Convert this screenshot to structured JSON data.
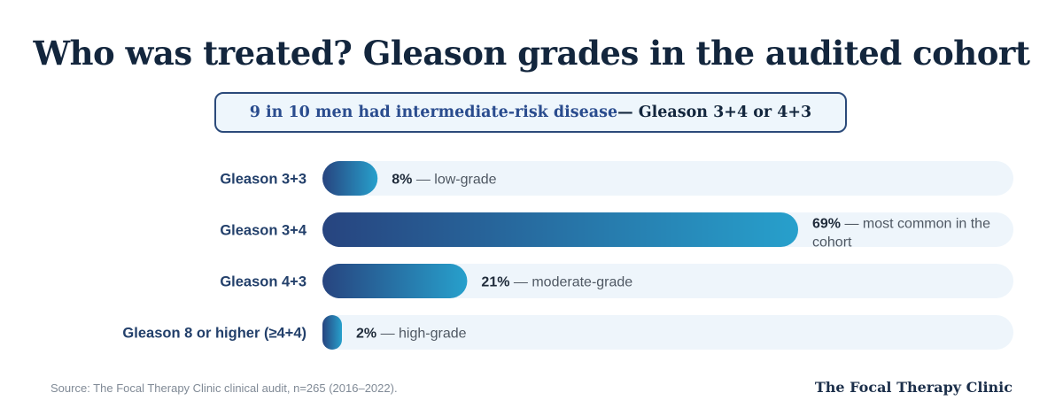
{
  "header": {
    "title": "Who was treated? Gleason grades in the audited cohort",
    "callout_emphasis": "9 in 10 men had intermediate-risk disease",
    "callout_rest": " — Gleason 3+4 or 4+3"
  },
  "chart_data": {
    "type": "bar",
    "orientation": "horizontal",
    "categories": [
      "Gleason 3+3",
      "Gleason 3+4",
      "Gleason 4+3",
      "Gleason 8 or higher (≥4+4)"
    ],
    "values": [
      8,
      69,
      21,
      2
    ],
    "value_labels": [
      "8%",
      "69%",
      "21%",
      "2%"
    ],
    "annotations": [
      " — low-grade",
      " — most common in the cohort",
      " — moderate-grade",
      " — high-grade"
    ],
    "xlim": [
      0,
      100
    ],
    "unit": "%",
    "grid": false,
    "legend": "none",
    "colors": {
      "bar_start": "#27447f",
      "bar_end": "#27a0cc",
      "track": "#eef5fb",
      "label": "#23406b",
      "value": "#1f2b3a",
      "note": "#4f5863"
    }
  },
  "footer": {
    "source": "Source: The Focal Therapy Clinic clinical audit, n=265 (2016–2022).",
    "brand": "The Focal Therapy Clinic"
  }
}
